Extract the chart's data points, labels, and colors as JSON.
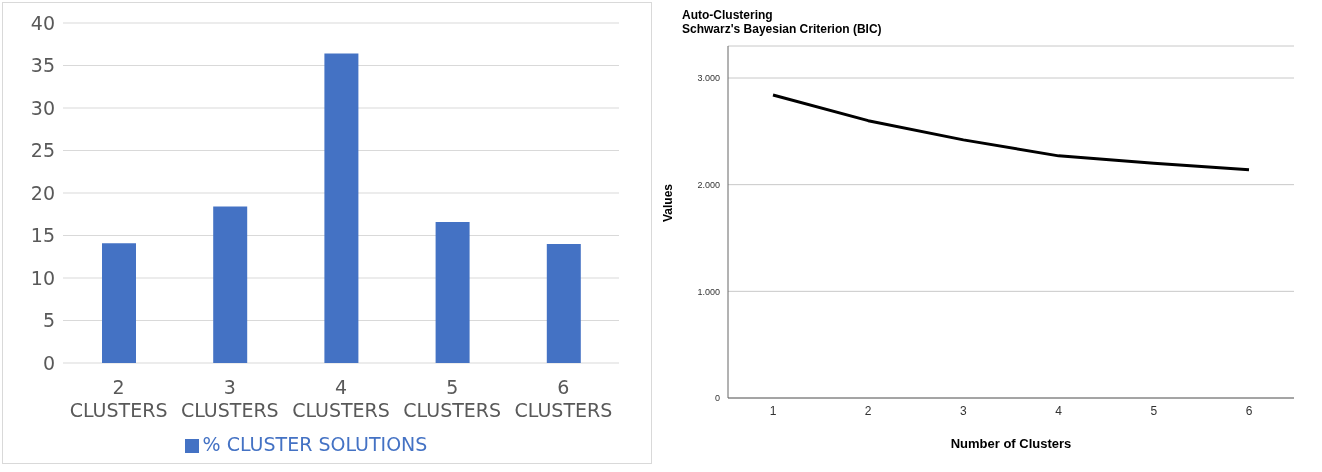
{
  "chart_data": [
    {
      "type": "bar",
      "categories": [
        "2 CLUSTERS",
        "3 CLUSTERS",
        "4 CLUSTERS",
        "5 CLUSTERS",
        "6 CLUSTERS"
      ],
      "series": [
        {
          "name": "% CLUSTER SOLUTIONS",
          "color": "#4472c4",
          "values": [
            14.1,
            18.4,
            36.4,
            16.6,
            14.0
          ]
        }
      ],
      "ylim": [
        0,
        40
      ],
      "yticks": [
        0,
        5,
        10,
        15,
        20,
        25,
        30,
        35,
        40
      ],
      "grid": "y",
      "legend": "bottom"
    },
    {
      "type": "line",
      "title": "Auto-Clustering",
      "subtitle": "Schwarz's Bayesian Criterion (BIC)",
      "xlabel": "Number of Clusters",
      "ylabel": "Values",
      "categories": [
        "1",
        "2",
        "3",
        "4",
        "5",
        "6"
      ],
      "series": [
        {
          "color": "#000000",
          "values": [
            2840,
            2600,
            2420,
            2270,
            2200,
            2140
          ]
        }
      ],
      "ylim": [
        0,
        3300
      ],
      "yticks": [
        {
          "value": 0,
          "label": "0"
        },
        {
          "value": 1000,
          "label": "1.000"
        },
        {
          "value": 2000,
          "label": "2.000"
        },
        {
          "value": 3000,
          "label": "3.000"
        }
      ],
      "grid": "y",
      "marker": "none",
      "line_style": "solid"
    }
  ]
}
